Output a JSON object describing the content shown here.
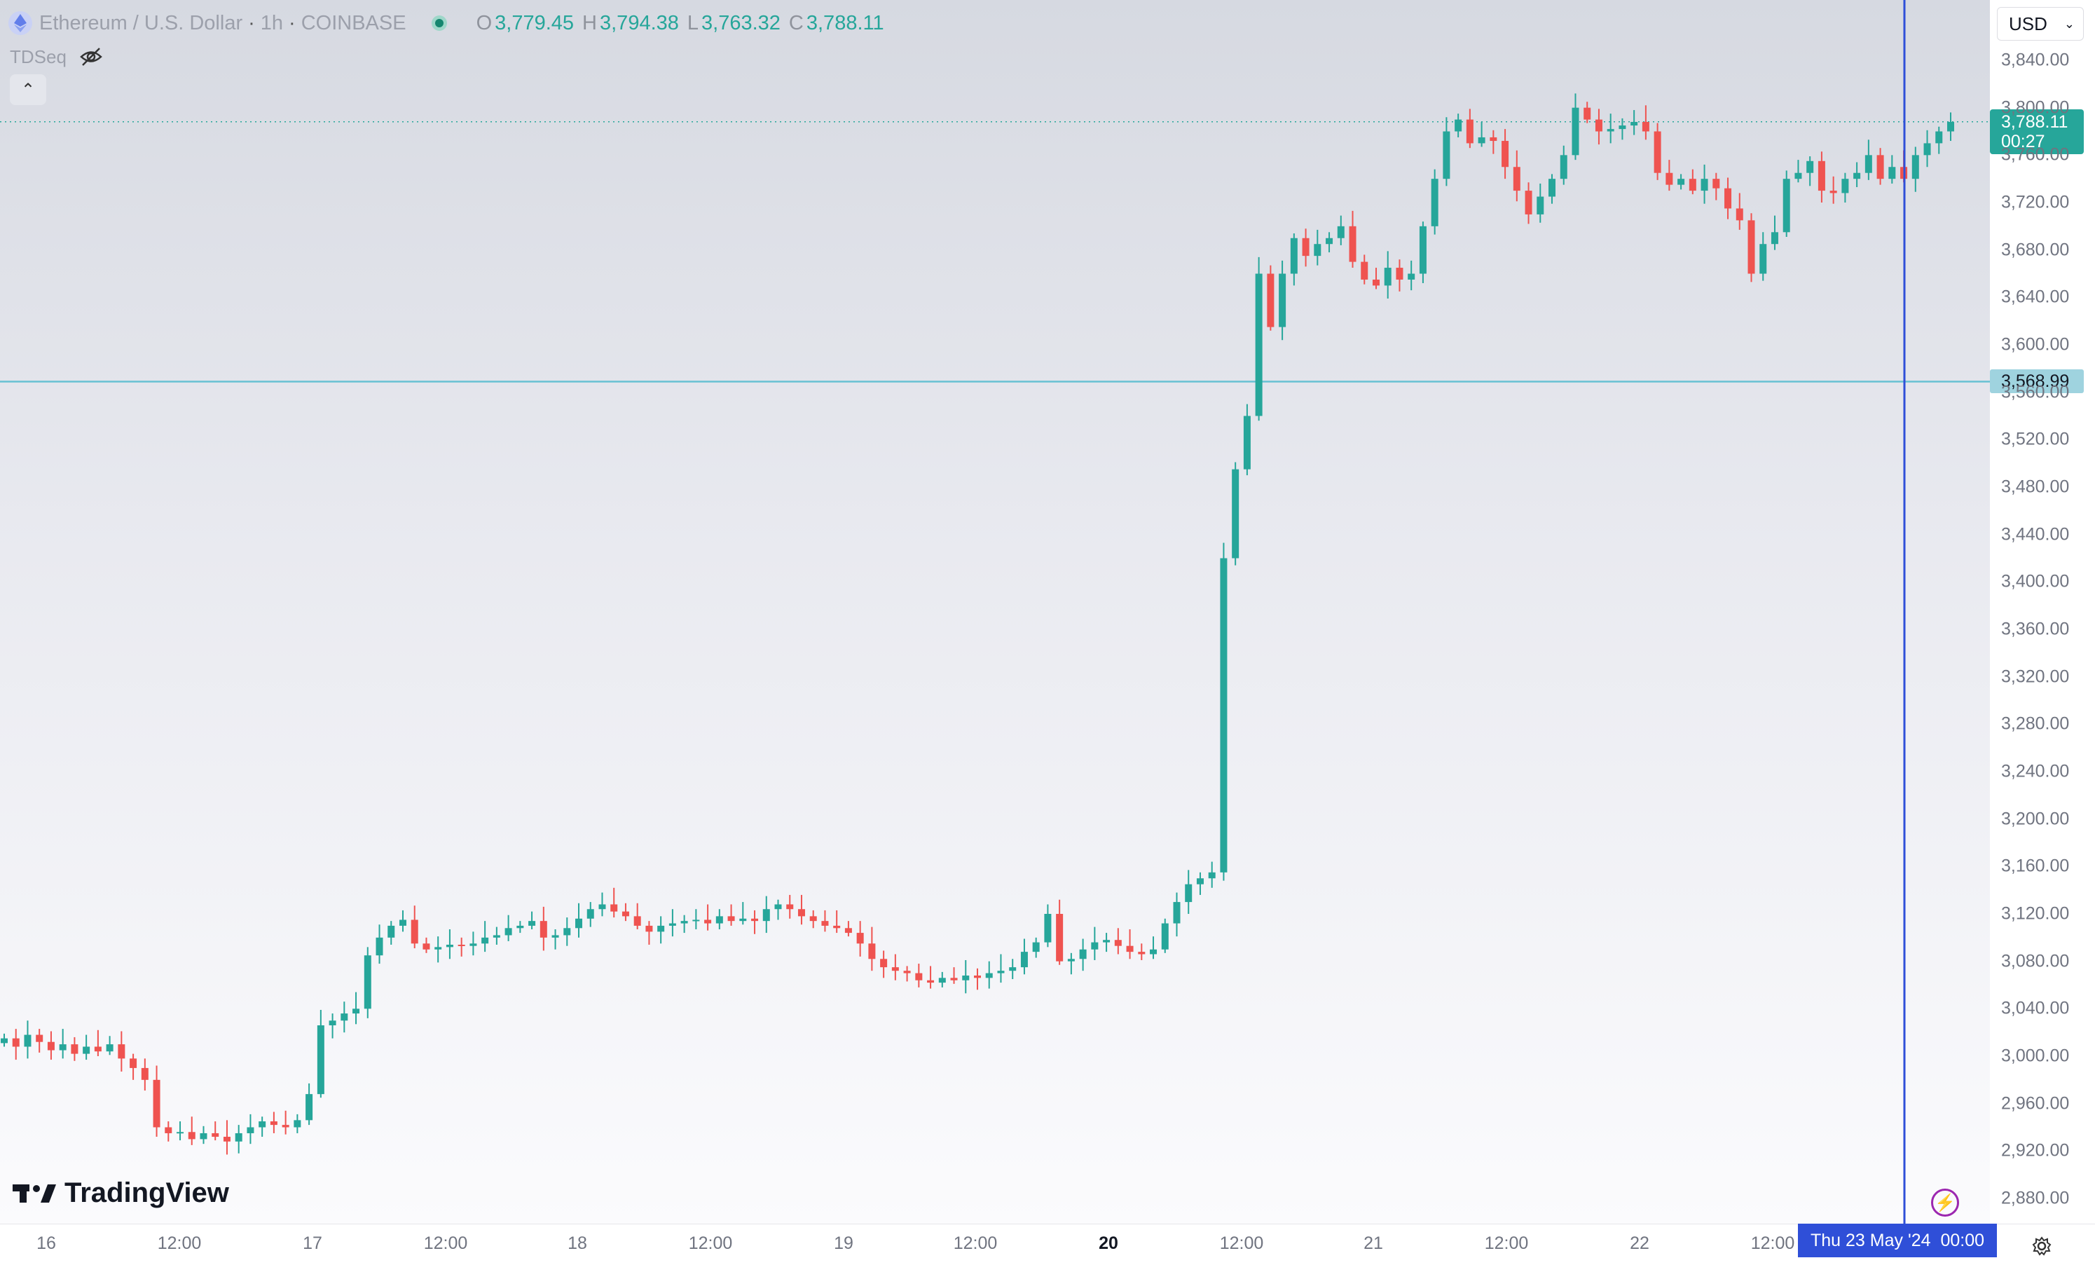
{
  "legend": {
    "symbol": "Ethereum / U.S. Dollar",
    "interval": "1h",
    "exchange": "COINBASE",
    "open_label": "O",
    "open": "3,779.45",
    "high_label": "H",
    "high": "3,794.38",
    "low_label": "L",
    "low": "3,763.32",
    "close_label": "C",
    "close": "3,788.11",
    "icon": "ethereum-icon"
  },
  "indicator": {
    "name": "TDSeq",
    "icon": "eye-off-icon"
  },
  "currency": {
    "value": "USD"
  },
  "price_axis": [
    "3,840.00",
    "3,800.00",
    "3,760.00",
    "3,720.00",
    "3,680.00",
    "3,640.00",
    "3,600.00",
    "3,560.00",
    "3,520.00",
    "3,480.00",
    "3,440.00",
    "3,400.00",
    "3,360.00",
    "3,320.00",
    "3,280.00",
    "3,240.00",
    "3,200.00",
    "3,160.00",
    "3,120.00",
    "3,080.00",
    "3,040.00",
    "3,000.00",
    "2,960.00",
    "2,920.00",
    "2,880.00"
  ],
  "current_price": {
    "value": "3,788.11",
    "countdown": "00:27"
  },
  "horizontal_line": {
    "value": "3,568.99"
  },
  "time_axis": [
    "16",
    "12:00",
    "17",
    "12:00",
    "18",
    "12:00",
    "19",
    "12:00",
    "20",
    "12:00",
    "21",
    "12:00",
    "22",
    "12:00"
  ],
  "crosshair": {
    "date": "Thu 23 May '24",
    "time": "00:00"
  },
  "brand": {
    "name": "TradingView"
  },
  "colors": {
    "up": "#26a69a",
    "down": "#ef5350",
    "hline": "#67c1d3",
    "crosshair": "#2f4fd8"
  },
  "chart_data": {
    "type": "candlestick",
    "ylim": [
      2880,
      3840
    ],
    "x_labels": [
      "16",
      "12:00",
      "17",
      "12:00",
      "18",
      "12:00",
      "19",
      "12:00",
      "20",
      "12:00",
      "21",
      "12:00",
      "22",
      "12:00"
    ],
    "close_path": [
      3015,
      3008,
      3018,
      3012,
      3005,
      3010,
      3002,
      3008,
      3004,
      3010,
      2998,
      2990,
      2980,
      2940,
      2935,
      2936,
      2930,
      2935,
      2932,
      2928,
      2935,
      2940,
      2945,
      2942,
      2940,
      2946,
      2968,
      3026,
      3030,
      3036,
      3040,
      3085,
      3100,
      3110,
      3115,
      3095,
      3090,
      3092,
      3094,
      3093,
      3095,
      3100,
      3102,
      3108,
      3110,
      3114,
      3100,
      3102,
      3108,
      3116,
      3124,
      3128,
      3122,
      3118,
      3110,
      3105,
      3110,
      3112,
      3114,
      3115,
      3112,
      3118,
      3114,
      3116,
      3114,
      3124,
      3128,
      3124,
      3118,
      3114,
      3110,
      3108,
      3104,
      3095,
      3082,
      3075,
      3072,
      3070,
      3064,
      3062,
      3066,
      3064,
      3068,
      3066,
      3070,
      3072,
      3075,
      3088,
      3096,
      3120,
      3080,
      3082,
      3090,
      3096,
      3098,
      3093,
      3088,
      3086,
      3090,
      3112,
      3130,
      3145,
      3150,
      3155,
      3420,
      3495,
      3540,
      3660,
      3615,
      3660,
      3690,
      3675,
      3685,
      3690,
      3700,
      3670,
      3655,
      3650,
      3665,
      3655,
      3660,
      3700,
      3740,
      3780,
      3790,
      3770,
      3775,
      3772,
      3750,
      3730,
      3710,
      3725,
      3740,
      3760,
      3800,
      3790,
      3780,
      3782,
      3785,
      3788,
      3780,
      3745,
      3735,
      3740,
      3730,
      3740,
      3732,
      3715,
      3705,
      3660,
      3685,
      3695,
      3740,
      3745,
      3755,
      3730,
      3728,
      3740,
      3745,
      3760,
      3740,
      3750,
      3740,
      3760,
      3770,
      3780,
      3788
    ]
  }
}
